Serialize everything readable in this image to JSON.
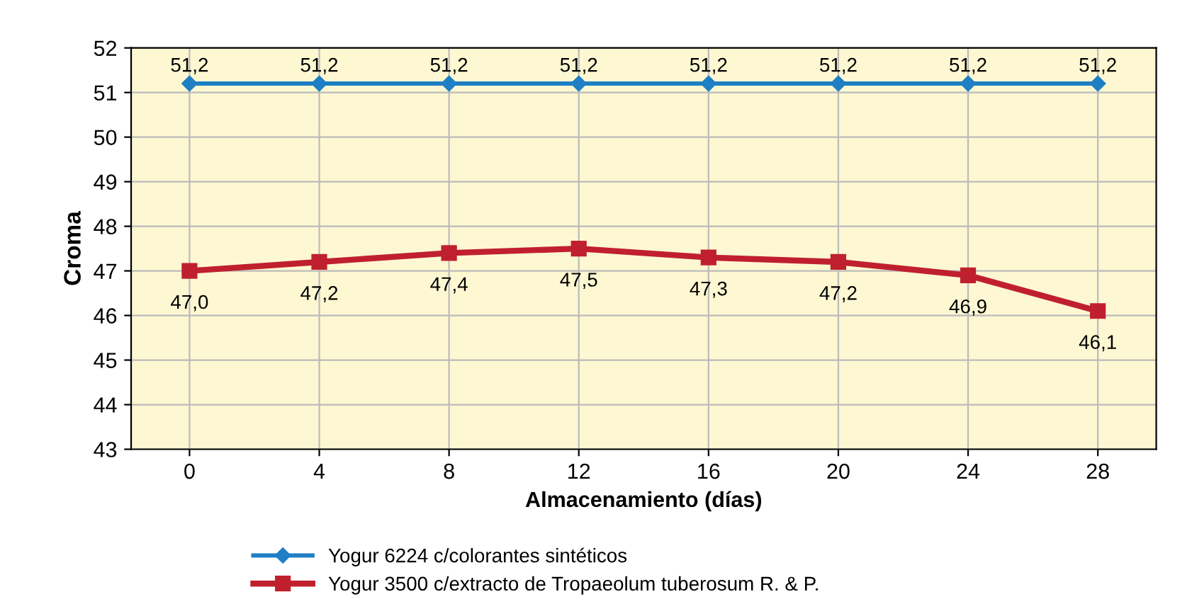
{
  "chart_data": {
    "type": "line",
    "xlabel": "Almacenamiento (días)",
    "ylabel": "Croma",
    "categories": [
      "0",
      "4",
      "8",
      "12",
      "16",
      "20",
      "24",
      "28"
    ],
    "series": [
      {
        "name": "Yogur 6224 c/colorantes sintéticos",
        "color": "#1f7fc4",
        "marker": "diamond",
        "values": [
          51.2,
          51.2,
          51.2,
          51.2,
          51.2,
          51.2,
          51.2,
          51.2
        ],
        "value_labels": [
          "51,2",
          "51,2",
          "51,2",
          "51,2",
          "51,2",
          "51,2",
          "51,2",
          "51,2"
        ]
      },
      {
        "name": "Yogur 3500 c/extracto de Tropaeolum tuberosum R. & P.",
        "color": "#c0202e",
        "marker": "square",
        "values": [
          47.0,
          47.2,
          47.4,
          47.5,
          47.3,
          47.2,
          46.9,
          46.1
        ],
        "value_labels": [
          "47,0",
          "47,2",
          "47,4",
          "47,5",
          "47,3",
          "47,2",
          "46,9",
          "46,1"
        ]
      }
    ],
    "ylim": [
      43,
      52
    ],
    "yticks": [
      43,
      44,
      45,
      46,
      47,
      48,
      49,
      50,
      51,
      52
    ],
    "grid": true,
    "legend": "bottom"
  }
}
